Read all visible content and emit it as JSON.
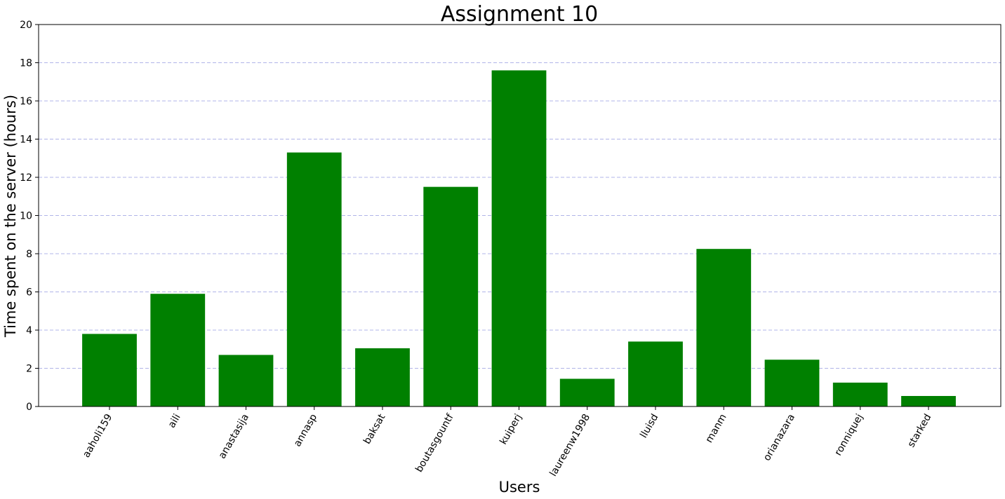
{
  "chart_data": {
    "type": "bar",
    "title": "Assignment 10",
    "xlabel": "Users",
    "ylabel": "Time spent on the server (hours)",
    "ylim": [
      0,
      20
    ],
    "yticks": [
      0,
      2,
      4,
      6,
      8,
      10,
      12,
      14,
      16,
      18,
      20
    ],
    "grid": "horizontal dashed",
    "bar_color": "#008000",
    "grid_color": "#b0b4e8",
    "categories": [
      "aaholi159",
      "aili",
      "anastasija",
      "annasp",
      "baksat",
      "boutasgountf",
      "kuiperj",
      "laureenw1998",
      "lluisd",
      "manm",
      "orianazara",
      "ronniquej",
      "starked"
    ],
    "values": [
      3.8,
      5.9,
      2.7,
      13.3,
      3.05,
      11.5,
      17.6,
      1.45,
      3.4,
      8.25,
      2.45,
      1.25,
      0.55
    ]
  }
}
